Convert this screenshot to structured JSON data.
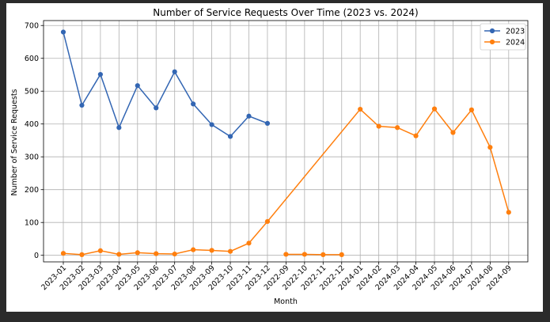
{
  "chart_data": {
    "type": "line",
    "title": "Number of Service Requests Over Time (2023 vs. 2024)",
    "xlabel": "Month",
    "ylabel": "Number of Service Requests",
    "ylim": [
      -20,
      715
    ],
    "yticks": [
      0,
      100,
      200,
      300,
      400,
      500,
      600,
      700
    ],
    "grid": true,
    "legend_position": "top-right",
    "categories": [
      "2023-01",
      "2023-02",
      "2023-03",
      "2023-04",
      "2023-05",
      "2023-06",
      "2023-07",
      "2023-08",
      "2023-09",
      "2023-10",
      "2023-11",
      "2023-12",
      "2022-09",
      "2022-10",
      "2022-11",
      "2022-12",
      "2024-01",
      "2024-02",
      "2024-03",
      "2024-04",
      "2024-05",
      "2024-06",
      "2024-07",
      "2024-08",
      "2024-09"
    ],
    "series": [
      {
        "name": "2023",
        "color": "#3366b3",
        "points": [
          {
            "x": "2023-01",
            "y": 680
          },
          {
            "x": "2023-02",
            "y": 457
          },
          {
            "x": "2023-03",
            "y": 551
          },
          {
            "x": "2023-04",
            "y": 389
          },
          {
            "x": "2023-05",
            "y": 517
          },
          {
            "x": "2023-06",
            "y": 449
          },
          {
            "x": "2023-07",
            "y": 559
          },
          {
            "x": "2023-08",
            "y": 461
          },
          {
            "x": "2023-09",
            "y": 398
          },
          {
            "x": "2023-10",
            "y": 362
          },
          {
            "x": "2023-11",
            "y": 424
          },
          {
            "x": "2023-12",
            "y": 402
          }
        ]
      },
      {
        "name": "2024",
        "color": "#ff7f0e",
        "points": [
          {
            "x": "2023-01",
            "y": 6
          },
          {
            "x": "2023-02",
            "y": 2
          },
          {
            "x": "2023-03",
            "y": 14
          },
          {
            "x": "2023-04",
            "y": 3
          },
          {
            "x": "2023-05",
            "y": 8
          },
          {
            "x": "2023-06",
            "y": 5
          },
          {
            "x": "2023-07",
            "y": 4
          },
          {
            "x": "2023-08",
            "y": 17
          },
          {
            "x": "2023-09",
            "y": 15
          },
          {
            "x": "2023-10",
            "y": 12
          },
          {
            "x": "2023-11",
            "y": 37
          },
          {
            "x": "2023-12",
            "y": 103
          },
          {
            "x": "2024-01",
            "y": 445
          },
          {
            "x": "2024-02",
            "y": 393
          },
          {
            "x": "2024-03",
            "y": 389
          },
          {
            "x": "2024-04",
            "y": 364
          },
          {
            "x": "2024-05",
            "y": 446
          },
          {
            "x": "2024-06",
            "y": 374
          },
          {
            "x": "2024-07",
            "y": 443
          },
          {
            "x": "2024-08",
            "y": 329
          },
          {
            "x": "2024-09",
            "y": 131
          }
        ]
      },
      {
        "name": "",
        "color": "#ff7f0e",
        "points": [
          {
            "x": "2022-09",
            "y": 3
          },
          {
            "x": "2022-10",
            "y": 3
          },
          {
            "x": "2022-11",
            "y": 2
          },
          {
            "x": "2022-12",
            "y": 2
          }
        ]
      }
    ]
  }
}
